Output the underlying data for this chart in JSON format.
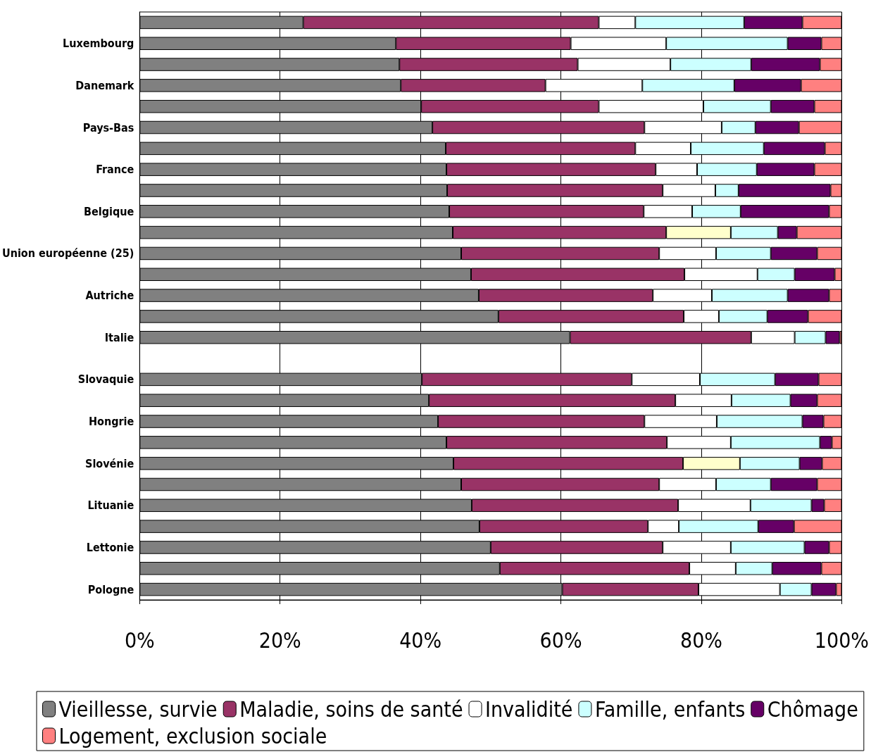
{
  "chart_data": {
    "type": "bar",
    "orientation": "horizontal",
    "stacked": true,
    "categories": [
      null,
      "Luxembourg",
      null,
      "Danemark",
      null,
      "Pays-Bas",
      null,
      "France",
      null,
      "Belgique",
      null,
      "Union européenne (25)",
      null,
      "Autriche",
      null,
      "Italie",
      null,
      "Slovaquie",
      null,
      "Hongrie",
      null,
      "Slovénie",
      null,
      "Lituanie",
      null,
      "Lettonie",
      null,
      "Pologne"
    ],
    "series": [
      {
        "name": "Vieillesse, survie",
        "color": "#808080",
        "values": [
          23.3,
          36.5,
          37.0,
          37.2,
          40.1,
          41.7,
          43.6,
          43.7,
          43.8,
          44.1,
          44.6,
          45.8,
          47.2,
          48.3,
          51.1,
          61.3,
          null,
          40.2,
          41.2,
          42.5,
          43.7,
          44.7,
          45.8,
          47.3,
          48.4,
          50.0,
          51.3,
          60.2
        ]
      },
      {
        "name": "Maladie, soins de santé",
        "color": "#993366",
        "values": [
          42.1,
          24.9,
          25.4,
          20.6,
          25.3,
          30.2,
          27.0,
          29.8,
          30.7,
          27.7,
          30.4,
          28.2,
          30.4,
          24.8,
          26.4,
          25.8,
          null,
          29.9,
          35.1,
          29.4,
          31.4,
          32.7,
          28.2,
          29.4,
          24.0,
          24.5,
          27.0,
          19.4
        ]
      },
      {
        "name": "Invalidité",
        "color": "#ffffff",
        "colors": [
          "#ffffff",
          "#ffffff",
          "#ffffff",
          "#ffffff",
          "#ffffff",
          "#ffffff",
          "#ffffff",
          "#ffffff",
          "#ffffff",
          "#ffffff",
          "#ffffcc",
          "#ffffff",
          "#ffffff",
          "#ffffff",
          "#ffffff",
          "#ffffff",
          "#ffffff",
          "#ffffff",
          "#ffffff",
          "#ffffff",
          "#ffffff",
          "#ffffcc",
          "#ffffff",
          "#ffffff",
          "#ffffff",
          "#ffffff",
          "#ffffff",
          "#ffffff"
        ],
        "values": [
          5.2,
          13.6,
          13.2,
          13.8,
          14.9,
          11.0,
          7.9,
          5.9,
          7.5,
          6.9,
          9.2,
          8.1,
          10.4,
          8.4,
          5.0,
          6.2,
          null,
          9.7,
          8.0,
          10.3,
          9.1,
          8.1,
          8.1,
          10.3,
          4.4,
          9.7,
          6.6,
          11.6
        ]
      },
      {
        "name": "Famille, enfants",
        "color": "#ccffff",
        "values": [
          15.5,
          17.3,
          11.5,
          13.1,
          9.6,
          4.8,
          10.4,
          8.5,
          3.3,
          6.9,
          6.7,
          7.8,
          5.3,
          10.8,
          6.9,
          4.4,
          null,
          10.7,
          8.4,
          12.2,
          12.7,
          8.5,
          7.8,
          8.7,
          11.3,
          10.5,
          5.2,
          4.5
        ]
      },
      {
        "name": "Chômage",
        "color": "#660066",
        "values": [
          8.3,
          4.8,
          9.8,
          9.5,
          6.2,
          6.2,
          8.7,
          8.2,
          13.1,
          12.6,
          2.7,
          6.6,
          5.7,
          5.9,
          5.8,
          2.0,
          null,
          6.2,
          3.8,
          3.0,
          1.7,
          3.2,
          6.6,
          1.8,
          5.1,
          3.5,
          7.0,
          3.5
        ]
      },
      {
        "name": "Logement, exclusion sociale",
        "color": "#ff8080",
        "values": [
          5.6,
          2.9,
          3.1,
          5.8,
          3.9,
          6.1,
          2.4,
          3.9,
          1.6,
          1.8,
          6.4,
          3.5,
          1.0,
          1.8,
          4.8,
          0.3,
          null,
          3.3,
          3.5,
          2.6,
          1.4,
          2.8,
          3.5,
          2.5,
          6.8,
          1.8,
          2.9,
          0.8
        ]
      }
    ],
    "xlim": [
      0,
      100
    ],
    "xticks": [
      {
        "value": 0,
        "label": "0%"
      },
      {
        "value": 20,
        "label": "20%"
      },
      {
        "value": 40,
        "label": "40%"
      },
      {
        "value": 60,
        "label": "60%"
      },
      {
        "value": 80,
        "label": "80%"
      },
      {
        "value": 100,
        "label": "100%"
      }
    ],
    "grid": "x",
    "legend": "bottom"
  }
}
